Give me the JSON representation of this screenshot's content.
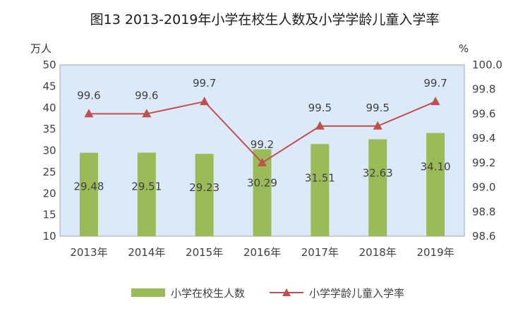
{
  "chart_data": {
    "type": "bar",
    "title": "图13  2013-2019年小学在校生人数及小学学龄儿童入学率",
    "y_left_unit": "万人",
    "y_right_unit": "%",
    "categories": [
      "2013年",
      "2014年",
      "2015年",
      "2016年",
      "2017年",
      "2018年",
      "2019年"
    ],
    "y_left_ticks": [
      "50",
      "45",
      "40",
      "35",
      "30",
      "25",
      "20",
      "15",
      "10"
    ],
    "y_right_ticks": [
      "100.0",
      "99.8",
      "99.6",
      "99.4",
      "99.2",
      "99.0",
      "98.8",
      "98.6"
    ],
    "ylim_left": [
      10,
      50
    ],
    "ylim_right": [
      98.6,
      100.0
    ],
    "series": [
      {
        "name": "小学在校生人数",
        "type": "bar",
        "axis": "left",
        "color": "#9bbb59",
        "values": [
          29.48,
          29.51,
          29.23,
          30.29,
          31.51,
          32.63,
          34.1
        ],
        "labels": [
          "29.48",
          "29.51",
          "29.23",
          "30.29",
          "31.51",
          "32.63",
          "34.10"
        ]
      },
      {
        "name": "小学学龄儿童入学率",
        "type": "line",
        "axis": "right",
        "color": "#c0504d",
        "values": [
          99.6,
          99.6,
          99.7,
          99.2,
          99.5,
          99.5,
          99.7
        ],
        "labels": [
          "99.6",
          "99.6",
          "99.7",
          "99.2",
          "99.5",
          "99.5",
          "99.7"
        ]
      }
    ],
    "plot_background": "#dce9f8",
    "grid": false,
    "legend_position": "bottom"
  }
}
